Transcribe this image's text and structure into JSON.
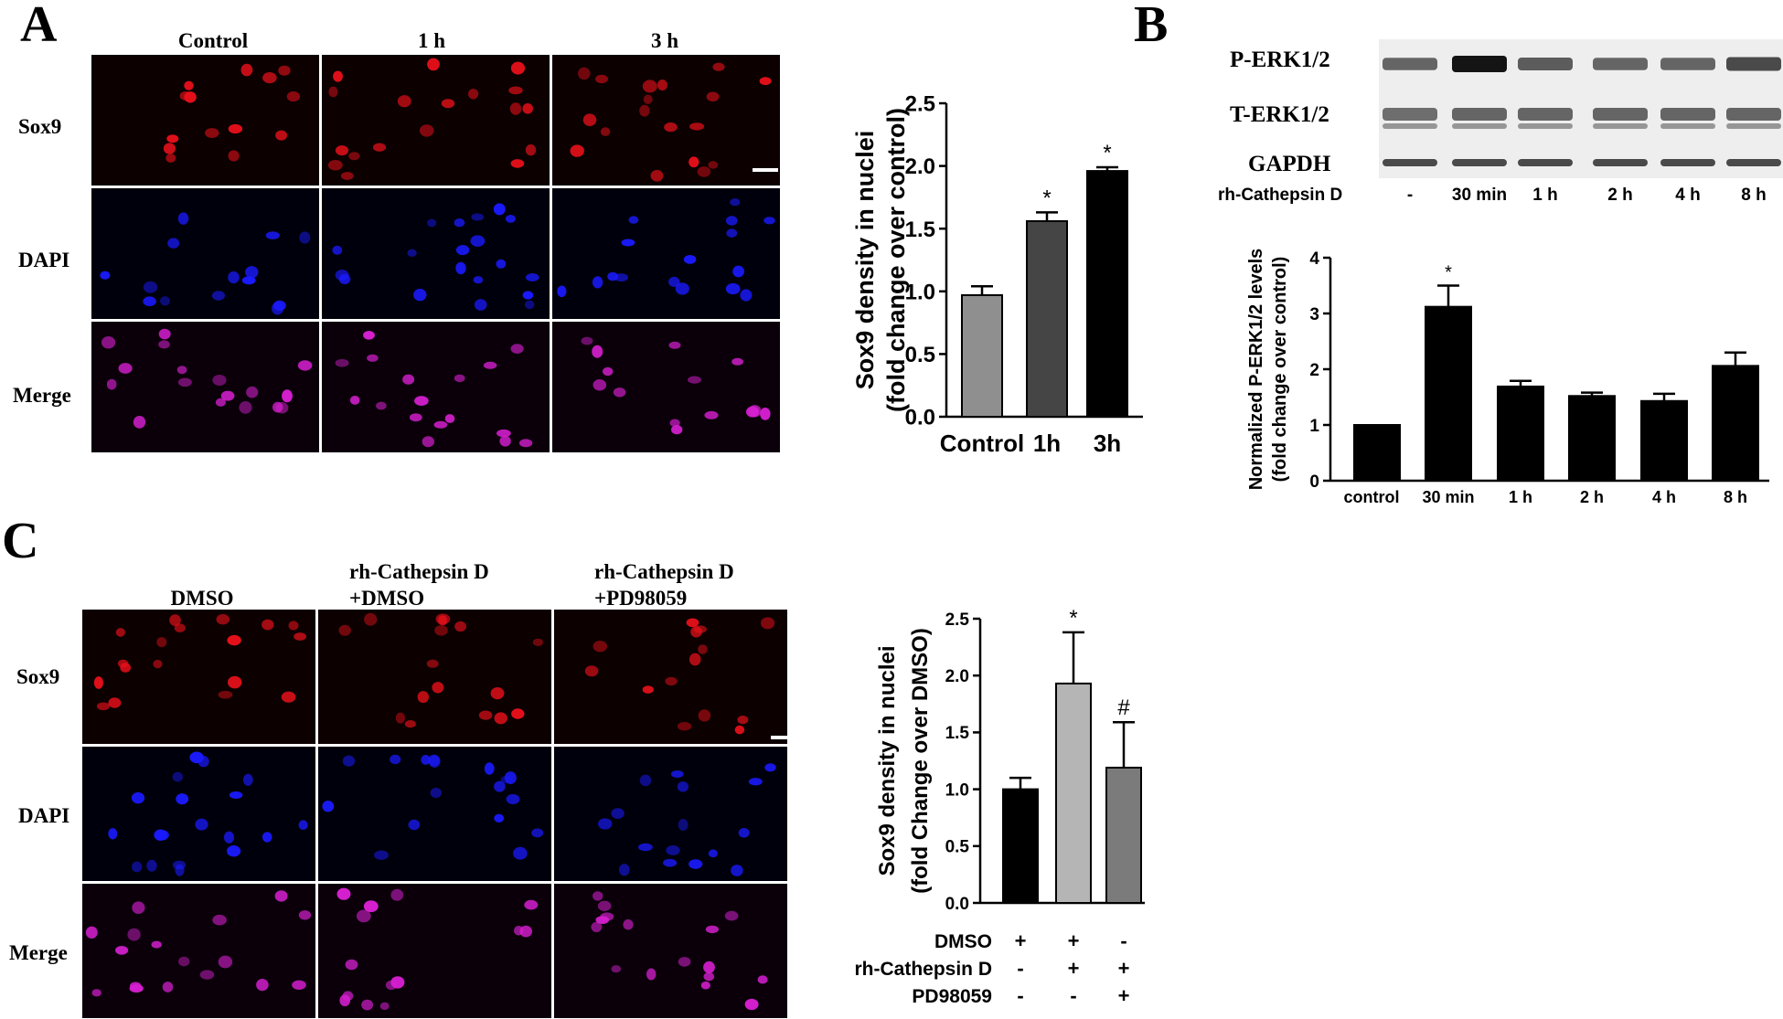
{
  "panels": {
    "a": "A",
    "b": "B",
    "c": "C"
  },
  "panel_a": {
    "columns": [
      "Control",
      "1 h",
      "3 h"
    ],
    "rows": [
      "Sox9",
      "DAPI",
      "Merge"
    ]
  },
  "panel_b": {
    "blot_rows": [
      "P-ERK1/2",
      "T-ERK1/2",
      "GAPDH"
    ],
    "treatment_label": "rh-Cathepsin D",
    "lanes": [
      "-",
      "30 min",
      "1 h",
      "2 h",
      "4 h",
      "8 h"
    ]
  },
  "panel_c": {
    "columns": [
      [
        "DMSO"
      ],
      [
        "rh-Cathepsin D",
        "+DMSO"
      ],
      [
        "rh-Cathepsin D",
        "+PD98059"
      ]
    ],
    "rows": [
      "Sox9",
      "DAPI",
      "Merge"
    ]
  },
  "colors": {
    "sox9": "#e8101a",
    "dapi": "#1a1aff",
    "merge": "#d61fd0",
    "bar_black": "#000000",
    "bar_gray": "#8f8f8f",
    "bar_dark": "#454545",
    "bar_light": "#b5b5b5",
    "bar_mid": "#7b7b7b"
  },
  "chart_data": [
    {
      "type": "bar",
      "categories": [
        "Control",
        "1h",
        "3h"
      ],
      "values": [
        0.97,
        1.56,
        1.96
      ],
      "errors": [
        0.07,
        0.07,
        0.03
      ],
      "significance": [
        "",
        "*",
        "*"
      ],
      "bar_colors": [
        "#8f8f8f",
        "#454545",
        "#000000"
      ],
      "ylabel": [
        "Sox9 density in nuclei",
        "(fold change over control)"
      ],
      "ylim": [
        0,
        2.5
      ],
      "yticks": [
        0.0,
        0.5,
        1.0,
        1.5,
        2.0,
        2.5
      ],
      "ytick_labels": [
        "0.0",
        "0.5",
        "1.0",
        "1.5",
        "2.0",
        "2.5"
      ]
    },
    {
      "type": "bar",
      "categories": [
        "control",
        "30 min",
        "1 h",
        "2 h",
        "4 h",
        "8 h"
      ],
      "values": [
        1.0,
        3.12,
        1.69,
        1.52,
        1.43,
        2.06
      ],
      "errors": [
        0.0,
        0.38,
        0.1,
        0.06,
        0.13,
        0.24
      ],
      "significance": [
        "",
        "*",
        "",
        "",
        "",
        ""
      ],
      "bar_colors": [
        "#000000",
        "#000000",
        "#000000",
        "#000000",
        "#000000",
        "#000000"
      ],
      "ylabel": [
        "Normalized P-ERK1/2 levels",
        "(fold change over control)"
      ],
      "ylim": [
        0,
        4
      ],
      "yticks": [
        0,
        1,
        2,
        3,
        4
      ],
      "ytick_labels": [
        "0",
        "1",
        "2",
        "3",
        "4"
      ]
    },
    {
      "type": "bar",
      "categories": [
        "DMSO",
        "rh-Cathepsin D + DMSO",
        "rh-Cathepsin D + PD98059"
      ],
      "values": [
        1.0,
        1.93,
        1.19
      ],
      "errors": [
        0.1,
        0.45,
        0.4
      ],
      "significance": [
        "",
        "*",
        "#"
      ],
      "bar_colors": [
        "#000000",
        "#b5b5b5",
        "#7b7b7b"
      ],
      "ylabel": [
        "Sox9 density in nuclei",
        "(fold Change over DMSO)"
      ],
      "ylim": [
        0,
        2.5
      ],
      "yticks": [
        0.0,
        0.5,
        1.0,
        1.5,
        2.0,
        2.5
      ],
      "ytick_labels": [
        "0.0",
        "0.5",
        "1.0",
        "1.5",
        "2.0",
        "2.5"
      ],
      "condition_table": {
        "rows": [
          {
            "label": "DMSO",
            "values": [
              "+",
              "+",
              "-"
            ]
          },
          {
            "label": "rh-Cathepsin D",
            "values": [
              "-",
              "+",
              "+"
            ]
          },
          {
            "label": "PD98059",
            "values": [
              "-",
              "-",
              "+"
            ]
          }
        ]
      }
    }
  ]
}
